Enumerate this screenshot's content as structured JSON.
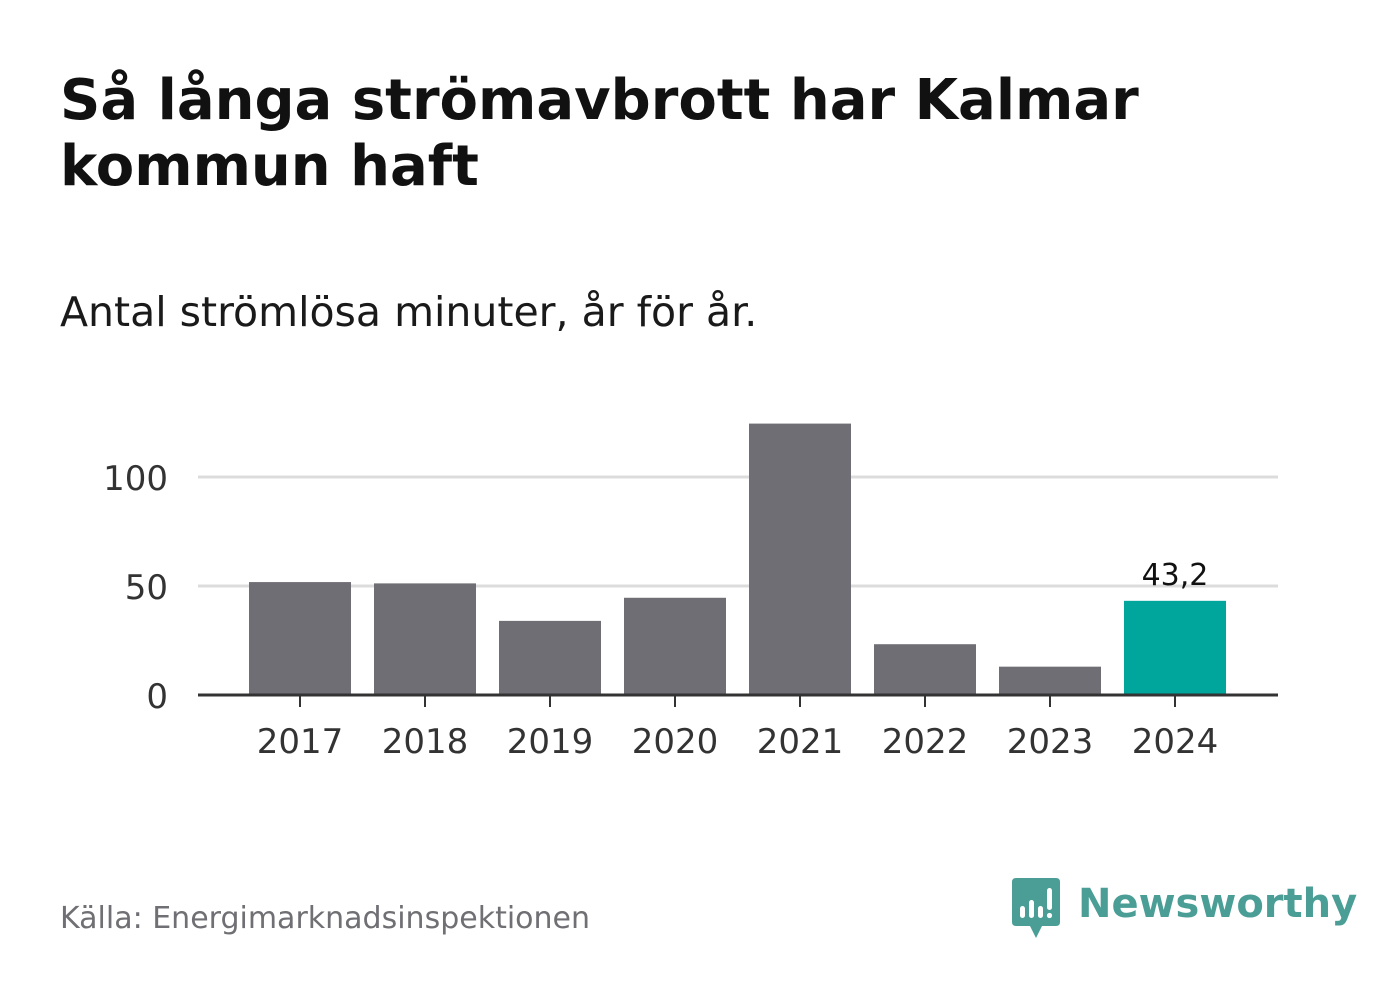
{
  "header": {
    "title": "Så långa strömavbrott har Kalmar kommun haft",
    "subtitle": "Antal strömlösa minuter, år för år."
  },
  "footer": {
    "source": "Källa: Energimarknadsinspektionen",
    "brand": "Newsworthy"
  },
  "colors": {
    "bar": "#6f6e74",
    "highlight": "#00a59b",
    "grid": "#dcdcdc",
    "axis": "#333333",
    "brand": "#4a9e96"
  },
  "icons": {
    "brand": "bar-chart-speech-bubble-icon"
  },
  "chart_data": {
    "type": "bar",
    "categories": [
      "2017",
      "2018",
      "2019",
      "2020",
      "2021",
      "2022",
      "2023",
      "2024"
    ],
    "values": [
      51.8,
      51.2,
      34,
      44.6,
      124.5,
      23.3,
      13,
      43.2
    ],
    "highlight_index": 7,
    "data_labels": [
      {
        "index": 7,
        "text": "43,2"
      }
    ],
    "ylim": [
      0,
      125
    ],
    "yticks": [
      0,
      50,
      100
    ],
    "ytick_labels": [
      "0",
      "50",
      "100"
    ],
    "grid": true,
    "xlabel": "",
    "ylabel": ""
  }
}
